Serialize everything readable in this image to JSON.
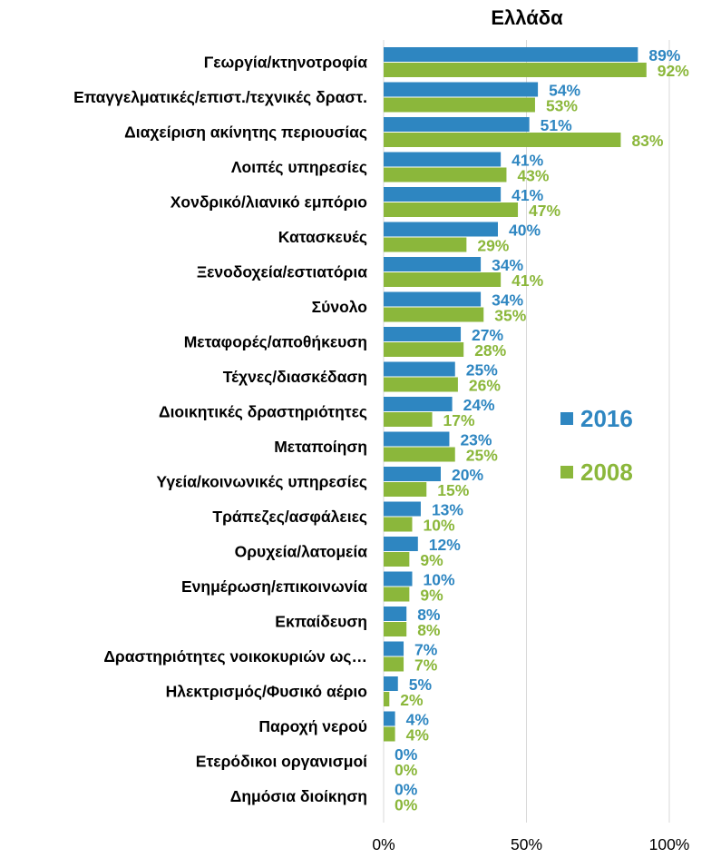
{
  "chart_data": {
    "type": "bar",
    "orientation": "horizontal",
    "title": "Ελλάδα",
    "categories": [
      "Γεωργία/κτηνοτροφία",
      "Επαγγελματικές/επιστ./τεχνικές δραστ.",
      "Διαχείριση  ακίνητης περιουσίας",
      "Λοιπές υπηρεσίες",
      "Χονδρικό/λιανικό εμπόριο",
      "Κατασκευές",
      "Ξενοδοχεία/εστιατόρια",
      "Σύνολο",
      "Μεταφορές/αποθήκευση",
      "Τέχνες/διασκέδαση",
      "Διοικητικές δραστηριότητες",
      "Μεταποίηση",
      "Υγεία/κοινωνικές υπηρεσίες",
      "Τράπεζες/ασφάλειες",
      "Ορυχεία/λατομεία",
      "Ενημέρωση/επικοινωνία",
      "Εκπαίδευση",
      "Δραστηριότητες νοικοκυριών ως…",
      "Ηλεκτρισμός/Φυσικό  αέριο",
      "Παροχή νερού",
      "Ετερόδικοι οργανισμοί",
      "Δημόσια διοίκηση"
    ],
    "series": [
      {
        "name": "2016",
        "color": "#2e86c1",
        "values": [
          89,
          54,
          51,
          41,
          41,
          40,
          34,
          34,
          27,
          25,
          24,
          23,
          20,
          13,
          12,
          10,
          8,
          7,
          5,
          4,
          0,
          0
        ],
        "labels": [
          "89%",
          "54%",
          "51%",
          "41%",
          "41%",
          "40%",
          "34%",
          "34%",
          "27%",
          "25%",
          "24%",
          "23%",
          "20%",
          "13%",
          "12%",
          "10%",
          "8%",
          "7%",
          "5%",
          "4%",
          "0%",
          "0%"
        ]
      },
      {
        "name": "2008",
        "color": "#8bb73b",
        "values": [
          92,
          53,
          83,
          43,
          47,
          29,
          41,
          35,
          28,
          26,
          17,
          25,
          15,
          10,
          9,
          9,
          8,
          7,
          2,
          4,
          0,
          0
        ],
        "labels": [
          "92%",
          "53%",
          "83%",
          "43%",
          "47%",
          "29%",
          "41%",
          "35%",
          "28%",
          "26%",
          "17%",
          "25%",
          "15%",
          "10%",
          "9%",
          "9%",
          "8%",
          "7%",
          "2%",
          "4%",
          "0%",
          "0%"
        ]
      }
    ],
    "xlim": [
      0,
      100
    ],
    "xticks": [
      0,
      50,
      100
    ],
    "xtick_labels": [
      "0%",
      "50%",
      "100%"
    ],
    "grid": "vertical",
    "legend": "right-middle",
    "xlabel": "",
    "ylabel": ""
  }
}
